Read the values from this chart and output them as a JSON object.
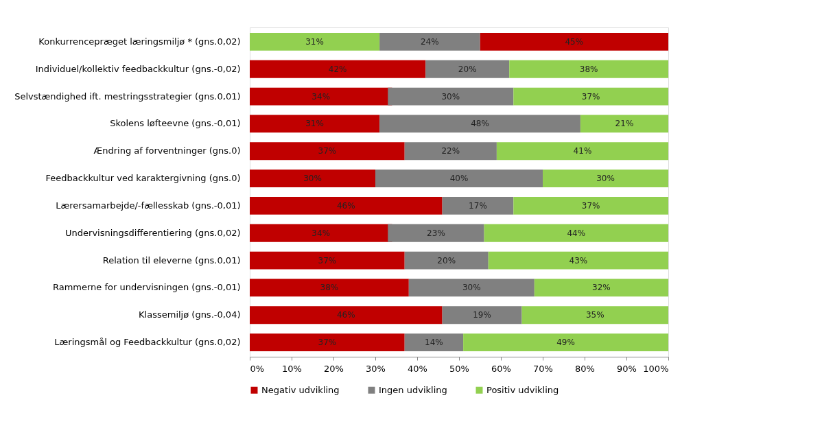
{
  "chart_data": {
    "type": "bar",
    "orientation": "horizontal",
    "categories": [
      "Konkurrencepræget læringsmiljø * (gns.0,02)",
      "Individuel/kollektiv feedbackkultur (gns.-0,02)",
      "Selvstændighed ift. mestringsstrategier (gns.0,01)",
      "Skolens løfteevne (gns.-0,01)",
      "Ændring af forventninger (gns.0)",
      "Feedbackkultur ved karaktergivning (gns.0)",
      "Lærersamarbejde/-fællesskab (gns.-0,01)",
      "Undervisningsdifferentiering (gns.0,02)",
      "Relation til eleverne (gns.0,01)",
      "Rammerne for undervisningen (gns.-0,01)",
      "Klassemiljø (gns.-0,04)",
      "Læringsmål og Feedbackkultur (gns.0,02)"
    ],
    "series": [
      {
        "name": "Negativ udvikling",
        "color": "#c00000",
        "values": [
          45,
          42,
          34,
          31,
          37,
          30,
          46,
          34,
          37,
          38,
          46,
          37
        ],
        "base": [
          55,
          0,
          0,
          0,
          0,
          0,
          0,
          0,
          0,
          0,
          0,
          0
        ],
        "value_labels": [
          "45%",
          "42%",
          "34%",
          "31%",
          "37%",
          "30%",
          "46%",
          "34%",
          "37%",
          "38%",
          "46%",
          "37%"
        ]
      },
      {
        "name": "Ingen udvikling",
        "color": "#808080",
        "values": [
          24,
          20,
          30,
          48,
          22,
          40,
          17,
          23,
          20,
          30,
          19,
          14
        ],
        "base": [
          31,
          42,
          33,
          31,
          37,
          30,
          46,
          33,
          37,
          38,
          46,
          37
        ],
        "value_labels": [
          "24%",
          "20%",
          "30%",
          "48%",
          "22%",
          "40%",
          "17%",
          "23%",
          "20%",
          "30%",
          "19%",
          "14%"
        ]
      },
      {
        "name": "Positiv udvikling",
        "color": "#92d050",
        "values": [
          31,
          38,
          37,
          21,
          41,
          30,
          37,
          44,
          43,
          32,
          35,
          49
        ],
        "base": [
          0,
          62,
          63,
          79,
          59,
          70,
          63,
          56,
          57,
          68,
          65,
          51
        ],
        "value_labels": [
          "31%",
          "38%",
          "37%",
          "21%",
          "41%",
          "30%",
          "37%",
          "44%",
          "43%",
          "32%",
          "35%",
          "49%"
        ]
      }
    ],
    "xlim": [
      0,
      100
    ],
    "xticks": [
      {
        "value": 0,
        "label": "0%"
      },
      {
        "value": 10,
        "label": "10%"
      },
      {
        "value": 20,
        "label": "20%"
      },
      {
        "value": 30,
        "label": "30%"
      },
      {
        "value": 40,
        "label": "40%"
      },
      {
        "value": 50,
        "label": "50%"
      },
      {
        "value": 60,
        "label": "60%"
      },
      {
        "value": 70,
        "label": "70%"
      },
      {
        "value": 80,
        "label": "80%"
      },
      {
        "value": 90,
        "label": "90%"
      },
      {
        "value": 100,
        "label": "100%"
      }
    ],
    "grid": false,
    "legend": "bottom"
  }
}
